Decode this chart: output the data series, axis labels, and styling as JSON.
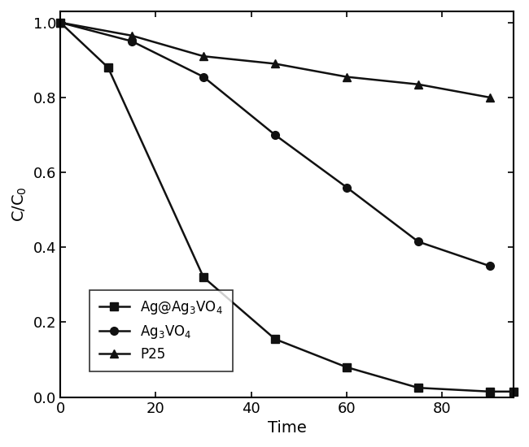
{
  "series": [
    {
      "label": "Ag@Ag$_3$VO$_4$",
      "x": [
        0,
        10,
        30,
        45,
        60,
        75,
        90,
        95
      ],
      "y": [
        1.0,
        0.88,
        0.32,
        0.155,
        0.08,
        0.025,
        0.015,
        0.015
      ],
      "marker": "s",
      "markersize": 7
    },
    {
      "label": "Ag$_3$VO$_4$",
      "x": [
        0,
        15,
        30,
        45,
        60,
        75,
        90
      ],
      "y": [
        1.0,
        0.95,
        0.855,
        0.7,
        0.56,
        0.415,
        0.35
      ],
      "marker": "o",
      "markersize": 7
    },
    {
      "label": "P25",
      "x": [
        0,
        15,
        30,
        45,
        60,
        75,
        90
      ],
      "y": [
        1.0,
        0.965,
        0.91,
        0.89,
        0.855,
        0.835,
        0.8
      ],
      "marker": "^",
      "markersize": 7
    }
  ],
  "xlabel": "Time",
  "ylabel": "C/C$_0$",
  "xlim": [
    0,
    95
  ],
  "ylim": [
    0.0,
    1.03
  ],
  "xticks": [
    0,
    20,
    40,
    60,
    80
  ],
  "yticks": [
    0.0,
    0.2,
    0.4,
    0.6,
    0.8,
    1.0
  ],
  "line_color": "#111111",
  "line_width": 1.8,
  "xlabel_fontsize": 14,
  "ylabel_fontsize": 14,
  "tick_fontsize": 13,
  "legend_fontsize": 12,
  "background_color": "#ffffff",
  "fig_width": 6.5,
  "fig_height": 5.5
}
